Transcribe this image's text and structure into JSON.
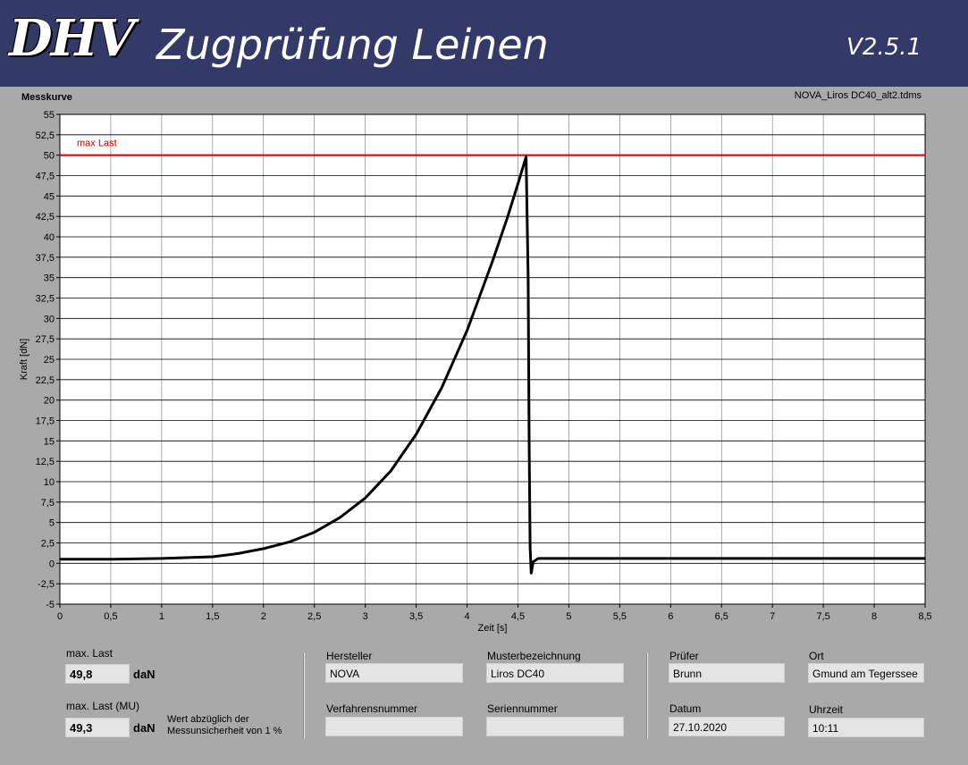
{
  "header": {
    "logo_text": "DHV",
    "title": "Zugprüfung Leinen",
    "version": "V2.5.1"
  },
  "chart": {
    "caption": "Messkurve",
    "file_name": "NOVA_Liros DC40_alt2.tdms"
  },
  "chart_data": {
    "type": "line",
    "title": "Messkurve",
    "xlabel": "Zeit [s]",
    "ylabel": "Kraft [dN]",
    "xlim": [
      0,
      8.5
    ],
    "ylim": [
      -5,
      55
    ],
    "x_ticks": [
      "0",
      "0,5",
      "1",
      "1,5",
      "2",
      "2,5",
      "3",
      "3,5",
      "4",
      "4,5",
      "5",
      "5,5",
      "6",
      "6,5",
      "7",
      "7,5",
      "8",
      "8,5"
    ],
    "y_ticks": [
      "-5",
      "-2,5",
      "0",
      "2,5",
      "5",
      "7,5",
      "10",
      "12,5",
      "15",
      "17,5",
      "20",
      "22,5",
      "25",
      "27,5",
      "30",
      "32,5",
      "35",
      "37,5",
      "40",
      "42,5",
      "45",
      "47,5",
      "50",
      "52,5",
      "55"
    ],
    "grid": true,
    "reference_line": {
      "label": "max Last",
      "y": 50,
      "color": "#cc0000"
    },
    "series": [
      {
        "color": "#000000",
        "x": [
          0.0,
          0.5,
          1.0,
          1.5,
          1.75,
          2.0,
          2.25,
          2.5,
          2.75,
          3.0,
          3.25,
          3.5,
          3.75,
          4.0,
          4.25,
          4.4,
          4.5,
          4.58,
          4.6,
          4.61,
          4.62,
          4.63,
          4.65,
          4.7,
          5.0,
          6.0,
          7.0,
          8.0,
          8.5
        ],
        "y": [
          0.5,
          0.5,
          0.6,
          0.8,
          1.2,
          1.8,
          2.6,
          3.8,
          5.6,
          8.0,
          11.3,
          15.8,
          21.5,
          28.5,
          37.0,
          42.5,
          46.5,
          49.8,
          35.0,
          15.0,
          2.0,
          -1.2,
          0.2,
          0.6,
          0.6,
          0.6,
          0.6,
          0.6,
          0.6
        ]
      }
    ]
  },
  "results": {
    "max_last_label": "max. Last",
    "max_last_value": "49,8",
    "max_last_unit": "daN",
    "max_last_mu_label": "max. Last (MU)",
    "max_last_mu_value": "49,3",
    "max_last_mu_unit": "daN",
    "note_line1": "Wert abzüglich der",
    "note_line2": "Messunsicherheit von 1 %"
  },
  "details": {
    "hersteller_label": "Hersteller",
    "hersteller_value": "NOVA",
    "muster_label": "Musterbezeichnung",
    "muster_value": "Liros DC40",
    "verfahren_label": "Verfahrensnummer",
    "verfahren_value": "",
    "serien_label": "Seriennummer",
    "serien_value": "",
    "pruefer_label": "Prüfer",
    "pruefer_value": "Brunn",
    "ort_label": "Ort",
    "ort_value": "Gmund am Tegerssee",
    "datum_label": "Datum",
    "datum_value": "27.10.2020",
    "uhrzeit_label": "Uhrzeit",
    "uhrzeit_value": "10:11"
  }
}
